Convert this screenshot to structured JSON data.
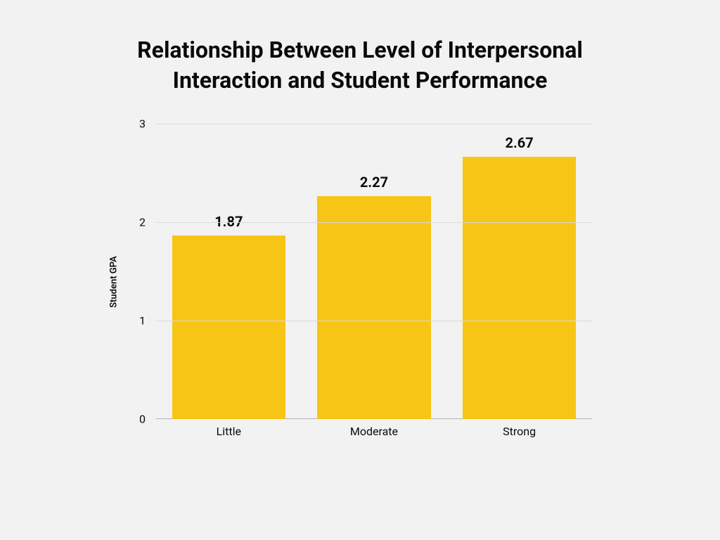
{
  "chart": {
    "type": "bar",
    "title": "Relationship Between Level of Interpersonal Interaction and Student Performance",
    "ylabel": "Student GPA",
    "ylim": [
      0,
      3
    ],
    "ytick_step": 1,
    "yticks": [
      {
        "value": 0,
        "label": "0"
      },
      {
        "value": 1,
        "label": "1"
      },
      {
        "value": 2,
        "label": "2"
      },
      {
        "value": 3,
        "label": "3"
      }
    ],
    "categories": [
      "Little",
      "Moderate",
      "Strong"
    ],
    "values": [
      1.87,
      2.27,
      2.67
    ],
    "value_labels": [
      "1.87",
      "2.27",
      "2.67"
    ],
    "bar_color": "#f7c516",
    "bar_width": 0.78,
    "background_color": "#f2f2f2",
    "grid_color": "#d9d9d9",
    "baseline_color": "#b5b5b5",
    "title_fontsize": 32,
    "title_fontweight": 700,
    "label_fontsize": 13,
    "tick_fontsize": 16,
    "value_fontsize": 20,
    "value_fontweight": 700,
    "text_color": "#0a0a0a"
  }
}
